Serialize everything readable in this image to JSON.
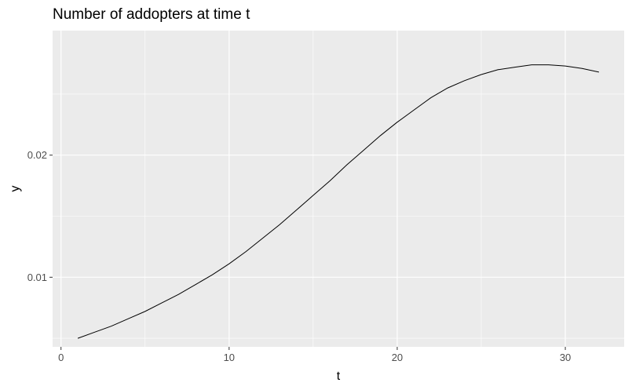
{
  "chart_data": {
    "type": "line",
    "title": "Number of addopters at time t",
    "xlabel": "t",
    "ylabel": "y",
    "xlim": [
      -0.5,
      33.5
    ],
    "ylim": [
      0.0043,
      0.0302
    ],
    "x_ticks": [
      0,
      10,
      20,
      30
    ],
    "x_minor": [
      5,
      15,
      25
    ],
    "y_ticks": [
      0.01,
      0.02
    ],
    "y_tick_labels": [
      "0.01",
      "0.02"
    ],
    "y_minor": [
      0.005,
      0.015,
      0.025
    ],
    "grid": true,
    "background": "#ebebeb",
    "grid_color": "#ffffff",
    "line_color": "#000000",
    "series": [
      {
        "x": [
          1,
          2,
          3,
          4,
          5,
          6,
          7,
          8,
          9,
          10,
          11,
          12,
          13,
          14,
          15,
          16,
          17,
          18,
          19,
          20,
          21,
          22,
          23,
          24,
          25,
          26,
          27,
          28,
          29,
          30,
          31,
          32
        ],
        "y": [
          0.005,
          0.0055,
          0.006,
          0.0066,
          0.0072,
          0.0079,
          0.0086,
          0.0094,
          0.0102,
          0.0111,
          0.0121,
          0.0132,
          0.0143,
          0.0155,
          0.0167,
          0.0179,
          0.0192,
          0.0204,
          0.0216,
          0.0227,
          0.0237,
          0.0247,
          0.0255,
          0.0261,
          0.0266,
          0.027,
          0.0272,
          0.0274,
          0.0274,
          0.0273,
          0.0271,
          0.0268
        ]
      }
    ]
  }
}
